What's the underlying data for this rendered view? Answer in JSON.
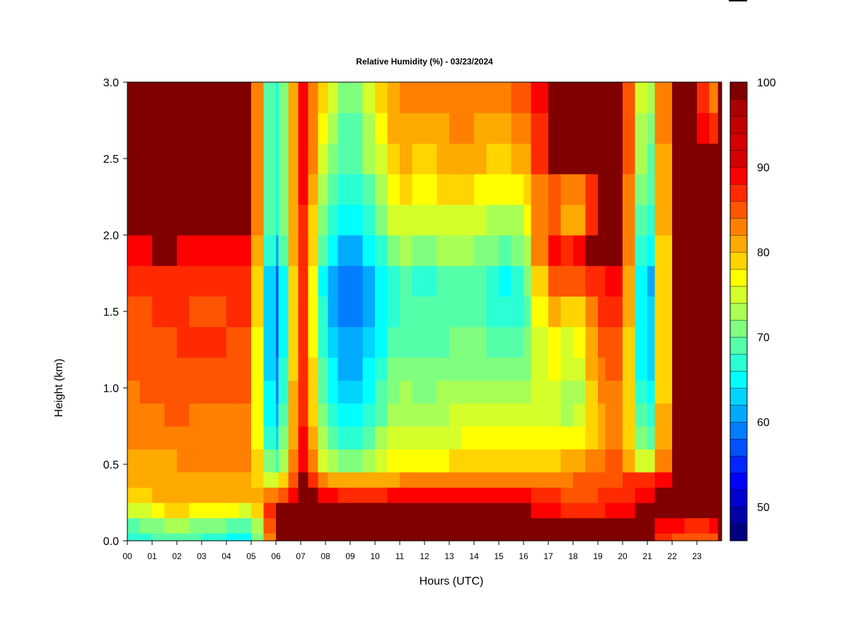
{
  "chart_data": {
    "type": "heatmap",
    "title": "Relative Humidity (%) - 03/23/2024",
    "xlabel": "Hours (UTC)",
    "ylabel": "Height (km)",
    "x_ticks": [
      "00",
      "01",
      "02",
      "03",
      "04",
      "05",
      "06",
      "07",
      "08",
      "09",
      "10",
      "11",
      "12",
      "13",
      "14",
      "15",
      "16",
      "17",
      "18",
      "19",
      "20",
      "21",
      "22",
      "23"
    ],
    "xlim": [
      0,
      24
    ],
    "y_ticks": [
      "0.0",
      "0.5",
      "1.0",
      "1.5",
      "2.0",
      "2.5",
      "3.0"
    ],
    "ylim": [
      0,
      3
    ],
    "colorbar": {
      "range": [
        45,
        100
      ],
      "step": 2.5,
      "tick_labels": [
        "50",
        "60",
        "70",
        "80",
        "90",
        "100"
      ],
      "colors": [
        "#00007f",
        "#0000a8",
        "#0000d2",
        "#0000fc",
        "#0026ff",
        "#0052ff",
        "#007eff",
        "#00aaff",
        "#00d4ff",
        "#00ffff",
        "#2bffd4",
        "#55ffaa",
        "#80ff7e",
        "#aaff55",
        "#d4ff2b",
        "#ffff00",
        "#ffd400",
        "#ffaa00",
        "#ff8000",
        "#ff5500",
        "#ff2a00",
        "#ff0000",
        "#d40000"
      ]
    },
    "height_levels_km": [
      0.05,
      0.15,
      0.25,
      0.35,
      0.45,
      0.6,
      0.75,
      0.9,
      1.05,
      1.2,
      1.4,
      1.6,
      1.8,
      2.0,
      2.2,
      2.4,
      2.6,
      2.8,
      3.0
    ],
    "hour_bins": [
      0,
      0.5,
      1,
      1.5,
      2,
      2.5,
      3,
      3.5,
      4,
      4.5,
      5,
      5.5,
      6,
      6.1,
      6.5,
      6.9,
      7.3,
      7.7,
      8.1,
      8.5,
      9,
      9.5,
      10,
      10.5,
      11,
      11.5,
      12,
      12.5,
      13,
      13.5,
      14,
      14.5,
      15,
      15.5,
      16,
      16.3,
      17,
      17.5,
      18,
      18.5,
      19,
      19.3,
      20,
      20.5,
      21,
      21.3,
      22,
      22.5,
      23,
      23.5,
      23.85
    ],
    "hour_profiles": [
      {
        "hour": 0.0,
        "rh": [
          70,
          74,
          80,
          85,
          88,
          89,
          90,
          91,
          92,
          93,
          93,
          94,
          95,
          98,
          99,
          100,
          100,
          100,
          100
        ]
      },
      {
        "hour": 1.0,
        "rh": [
          72,
          76,
          82,
          87,
          88,
          89,
          91,
          92,
          93,
          93,
          94,
          95,
          96,
          99,
          100,
          100,
          100,
          100,
          100
        ]
      },
      {
        "hour": 2.0,
        "rh": [
          75,
          80,
          86,
          90,
          90,
          90,
          92,
          93,
          93,
          94,
          95,
          96,
          97,
          99,
          100,
          100,
          100,
          100,
          100
        ]
      },
      {
        "hour": 3.0,
        "rh": [
          72,
          76,
          84,
          88,
          89,
          90,
          91,
          92,
          93,
          94,
          95,
          94,
          95,
          98,
          100,
          100,
          100,
          100,
          100
        ]
      },
      {
        "hour": 4.0,
        "rh": [
          70,
          75,
          83,
          88,
          89,
          90,
          91,
          92,
          93,
          94,
          95,
          95,
          96,
          98,
          100,
          100,
          100,
          100,
          100
        ]
      },
      {
        "hour": 5.0,
        "rh": [
          68,
          73,
          82,
          88,
          89,
          90,
          91,
          92,
          93,
          93,
          94,
          95,
          95,
          98,
          100,
          100,
          100,
          100,
          100
        ]
      },
      {
        "hour": 6.0,
        "rh": [
          100,
          100,
          100,
          92,
          80,
          70,
          65,
          62,
          60,
          58,
          57,
          56,
          56,
          62,
          66,
          66,
          66,
          66,
          66
        ]
      },
      {
        "hour": 7.0,
        "rh": [
          100,
          100,
          100,
          100,
          100,
          100,
          100,
          100,
          100,
          100,
          100,
          100,
          100,
          100,
          100,
          100,
          100,
          100,
          100
        ]
      },
      {
        "hour": 8.0,
        "rh": [
          100,
          100,
          100,
          98,
          90,
          80,
          76,
          74,
          72,
          70,
          68,
          67,
          66,
          70,
          74,
          77,
          80,
          82,
          84
        ]
      },
      {
        "hour": 9.0,
        "rh": [
          100,
          100,
          100,
          97,
          88,
          75,
          70,
          67,
          65,
          63,
          61,
          60,
          59,
          63,
          66,
          68,
          70,
          72,
          74
        ]
      },
      {
        "hour": 10.0,
        "rh": [
          100,
          100,
          100,
          97,
          88,
          80,
          76,
          73,
          71,
          69,
          67,
          66,
          66,
          70,
          74,
          77,
          80,
          82,
          84
        ]
      },
      {
        "hour": 11.0,
        "rh": [
          100,
          100,
          100,
          98,
          90,
          84,
          82,
          80,
          78,
          77,
          75,
          74,
          74,
          78,
          83,
          86,
          88,
          90,
          91
        ]
      },
      {
        "hour": 12.0,
        "rh": [
          100,
          100,
          100,
          98,
          91,
          84,
          80,
          78,
          77,
          75,
          73,
          72,
          71,
          76,
          80,
          84,
          86,
          88,
          90
        ]
      },
      {
        "hour": 13.0,
        "rh": [
          100,
          100,
          100,
          98,
          91,
          85,
          82,
          80,
          78,
          76,
          75,
          74,
          74,
          78,
          82,
          86,
          88,
          90,
          92
        ]
      },
      {
        "hour": 14.0,
        "rh": [
          100,
          100,
          100,
          98,
          92,
          86,
          83,
          81,
          79,
          77,
          76,
          74,
          74,
          78,
          82,
          85,
          88,
          90,
          92
        ]
      },
      {
        "hour": 15.0,
        "rh": [
          100,
          100,
          100,
          98,
          92,
          86,
          83,
          80,
          78,
          75,
          72,
          70,
          69,
          74,
          79,
          83,
          86,
          88,
          90
        ]
      },
      {
        "hour": 16.0,
        "rh": [
          100,
          100,
          100,
          98,
          92,
          86,
          83,
          80,
          78,
          76,
          74,
          72,
          72,
          76,
          80,
          84,
          88,
          91,
          94
        ]
      },
      {
        "hour": 17.0,
        "rh": [
          100,
          100,
          98,
          96,
          92,
          87,
          84,
          82,
          82,
          84,
          86,
          90,
          94,
          98,
          98,
          96,
          100,
          100,
          100
        ]
      },
      {
        "hour": 18.0,
        "rh": [
          100,
          100,
          96,
          94,
          92,
          88,
          82,
          78,
          76,
          79,
          80,
          84,
          92,
          97,
          85,
          88,
          100,
          100,
          100
        ]
      },
      {
        "hour": 19.0,
        "rh": [
          100,
          100,
          97,
          95,
          94,
          92,
          89,
          88,
          90,
          92,
          93,
          95,
          97,
          100,
          100,
          100,
          100,
          100,
          100
        ]
      },
      {
        "hour": 20.0,
        "rh": [
          100,
          100,
          98,
          96,
          95,
          93,
          92,
          92,
          93,
          95,
          96,
          98,
          99,
          100,
          100,
          100,
          100,
          100,
          100
        ]
      },
      {
        "hour": 21.0,
        "rh": [
          100,
          100,
          100,
          98,
          95,
          78,
          70,
          66,
          63,
          61,
          60,
          59,
          58,
          62,
          66,
          68,
          70,
          72,
          74
        ]
      },
      {
        "hour": 22.0,
        "rh": [
          94,
          98,
          100,
          100,
          100,
          100,
          100,
          100,
          100,
          100,
          100,
          100,
          100,
          100,
          100,
          100,
          100,
          100,
          100
        ]
      },
      {
        "hour": 23.0,
        "rh": [
          93,
          97,
          100,
          100,
          100,
          100,
          100,
          100,
          100,
          100,
          100,
          100,
          100,
          100,
          100,
          100,
          100,
          100,
          100
        ]
      },
      {
        "hour": 23.85,
        "rh": [
          94,
          98,
          100,
          100,
          100,
          100,
          100,
          100,
          100,
          100,
          100,
          100,
          100,
          100,
          100,
          100,
          100,
          96,
          90
        ]
      }
    ]
  }
}
